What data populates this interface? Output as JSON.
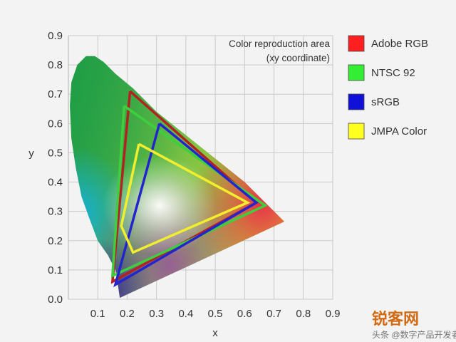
{
  "chart_data": {
    "type": "line",
    "xlabel": "x",
    "ylabel": "y",
    "xlim": [
      0,
      0.9
    ],
    "ylim": [
      0,
      0.9
    ],
    "xticks": [
      "0.1",
      "0.2",
      "0.3",
      "0.4",
      "0.5",
      "0.6",
      "0.7",
      "0.8",
      "0.9"
    ],
    "yticks": [
      "0.0",
      "0.1",
      "0.2",
      "0.3",
      "0.4",
      "0.5",
      "0.6",
      "0.7",
      "0.8",
      "0.9"
    ],
    "grid": true,
    "annotation": [
      "Color reproduction area",
      "(xy coordinate)"
    ],
    "legend_position": "right",
    "series": [
      {
        "name": "Adobe RGB",
        "color": "#ff1f1f",
        "outline": "#b32222",
        "x": [
          0.21,
          0.64,
          0.15,
          0.21
        ],
        "y": [
          0.71,
          0.33,
          0.06,
          0.71
        ]
      },
      {
        "name": "NTSC 92",
        "color": "#33ee33",
        "outline": "#3ecf3e",
        "x": [
          0.19,
          0.67,
          0.15,
          0.19
        ],
        "y": [
          0.66,
          0.32,
          0.08,
          0.66
        ]
      },
      {
        "name": "sRGB",
        "color": "#1010d8",
        "outline": "#2424cc",
        "x": [
          0.31,
          0.64,
          0.16,
          0.31
        ],
        "y": [
          0.6,
          0.33,
          0.05,
          0.6
        ]
      },
      {
        "name": "JMPA Color",
        "color": "#ffff20",
        "outline": "#f2ee2e",
        "x": [
          0.24,
          0.61,
          0.22,
          0.18,
          0.24
        ],
        "y": [
          0.53,
          0.33,
          0.16,
          0.25,
          0.53
        ]
      }
    ],
    "locus_x": [
      0.175,
      0.17,
      0.16,
      0.135,
      0.1,
      0.07,
      0.045,
      0.025,
      0.01,
      0.005,
      0.01,
      0.03,
      0.06,
      0.09,
      0.12,
      0.16,
      0.22,
      0.3,
      0.4,
      0.5,
      0.6,
      0.7,
      0.735
    ],
    "locus_y": [
      0.005,
      0.04,
      0.1,
      0.15,
      0.2,
      0.28,
      0.35,
      0.45,
      0.55,
      0.66,
      0.74,
      0.8,
      0.83,
      0.83,
      0.81,
      0.77,
      0.72,
      0.64,
      0.56,
      0.48,
      0.4,
      0.3,
      0.265
    ]
  },
  "watermark": {
    "main": "锐客网",
    "sub": "头条 @数字产品开发者"
  }
}
